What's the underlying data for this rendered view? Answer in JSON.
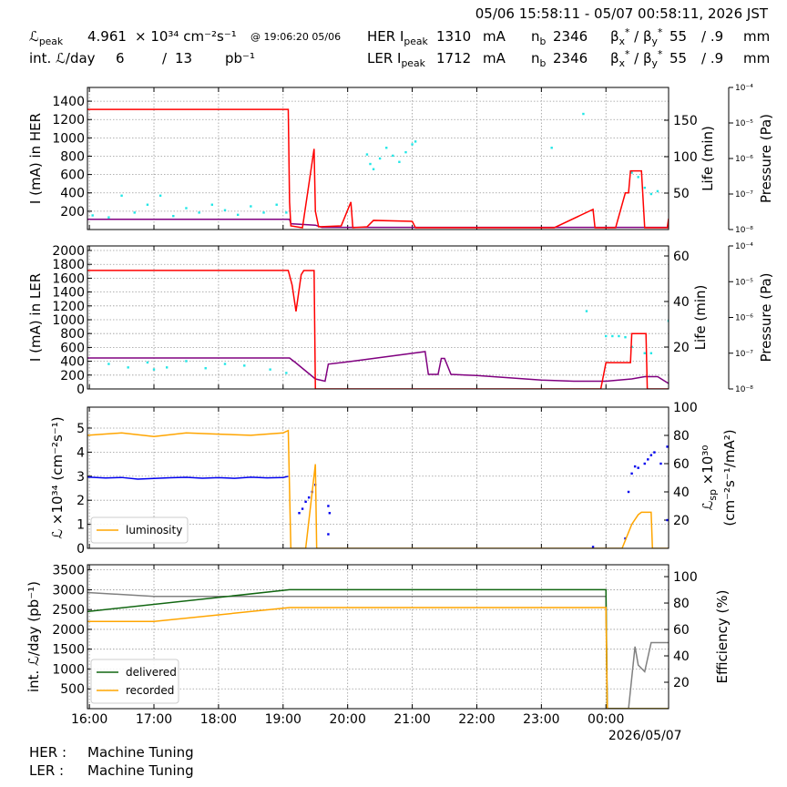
{
  "header": {
    "range": "05/06 15:58:11 - 05/07 00:58:11, 2026 JST",
    "row1": [
      [
        {
          "text": "ℒ"
        },
        {
          "text": "peak",
          "shift": "sub"
        }
      ],
      "4.961",
      "× 10³⁴ cm⁻²s⁻¹",
      "@ 19:06:20 05/06",
      [
        {
          "text": "HER I"
        },
        {
          "text": "peak",
          "shift": "sub"
        }
      ],
      "1310",
      "mA",
      [
        {
          "text": "n"
        },
        {
          "text": "b",
          "shift": "sub"
        }
      ],
      "2346",
      [
        {
          "text": "β"
        },
        {
          "text": "x",
          "shift": "sub"
        },
        {
          "text": "*",
          "shift": "sup"
        },
        {
          "text": " / β"
        },
        {
          "text": "y",
          "shift": "sub"
        },
        {
          "text": "*",
          "shift": "sup"
        }
      ],
      "55",
      "/ .9",
      "mm"
    ],
    "row2": [
      "int. ℒ/day",
      "6",
      "/",
      "13",
      "pb⁻¹",
      [
        {
          "text": "LER I"
        },
        {
          "text": "peak",
          "shift": "sub"
        }
      ],
      "1712",
      "mA",
      [
        {
          "text": "n"
        },
        {
          "text": "b",
          "shift": "sub"
        }
      ],
      "2346",
      [
        {
          "text": "β"
        },
        {
          "text": "x",
          "shift": "sub"
        },
        {
          "text": "*",
          "shift": "sup"
        },
        {
          "text": " / β"
        },
        {
          "text": "y",
          "shift": "sub"
        },
        {
          "text": "*",
          "shift": "sup"
        }
      ],
      "55",
      "/ .9",
      "mm"
    ]
  },
  "chart_data": [
    {
      "type": "line",
      "ylabel": [
        [
          {
            "text": "I (mA) in HER"
          }
        ]
      ],
      "y2label": [
        [
          {
            "text": "Life (min)"
          }
        ]
      ],
      "y3label": [
        [
          {
            "text": "Pressure (Pa)"
          }
        ]
      ],
      "xlim": [
        15.97,
        24.97
      ],
      "xticks": [
        16,
        17,
        18,
        19,
        20,
        21,
        22,
        23,
        24
      ],
      "ylim": [
        0,
        1550
      ],
      "yticks": [
        200,
        400,
        600,
        800,
        1000,
        1200,
        1400
      ],
      "y2lim": [
        0,
        195
      ],
      "y2ticks": [
        50,
        100,
        150
      ],
      "y3lim": [
        1e-08,
        0.0001
      ],
      "y3log": true,
      "y3ticks": [
        {
          "value": 1e-08,
          "label": "10⁻⁸"
        },
        {
          "value": 1e-07,
          "label": "10⁻⁷"
        },
        {
          "value": 1e-06,
          "label": "10⁻⁶"
        },
        {
          "value": 1e-05,
          "label": "10⁻⁵"
        },
        {
          "value": 0.0001,
          "label": "10⁻⁴"
        }
      ],
      "grid": true,
      "series": [
        {
          "type": "scatter",
          "color": "#22e6e6",
          "axis": "y3",
          "x": [
            16.05,
            16.3,
            16.5,
            16.7,
            16.9,
            17.1,
            17.3,
            17.5,
            17.7,
            17.9,
            18.1,
            18.3,
            18.5,
            18.7,
            18.9,
            19.05,
            20.3,
            20.35,
            20.4,
            20.5,
            20.6,
            20.7,
            20.8,
            20.9,
            21.0,
            21.05,
            23.16,
            23.65,
            24.4,
            24.5,
            24.6,
            24.7,
            24.8
          ],
          "values": [
            2.5e-08,
            2.2e-08,
            9e-08,
            3e-08,
            5e-08,
            9e-08,
            2.4e-08,
            4e-08,
            3e-08,
            5e-08,
            3.5e-08,
            2.6e-08,
            4.5e-08,
            3e-08,
            5e-08,
            3e-08,
            1.3e-06,
            7e-07,
            5e-07,
            1e-06,
            2e-06,
            1.2e-06,
            8e-07,
            1.5e-06,
            2.5e-06,
            3e-06,
            2e-06,
            1.8e-05,
            4e-07,
            3e-07,
            1.5e-07,
            1e-07,
            1.2e-07
          ]
        },
        {
          "type": "line",
          "color": "#800080",
          "axis": "y2",
          "x": [
            15.97,
            19.1,
            19.12,
            19.5,
            19.6,
            24.97
          ],
          "values": [
            14,
            14,
            8,
            6,
            3,
            3
          ]
        },
        {
          "type": "line",
          "color": "#ff0000",
          "axis": "y",
          "x": [
            15.97,
            19.08,
            19.1,
            19.12,
            19.3,
            19.48,
            19.5,
            19.55,
            19.9,
            20.05,
            20.08,
            20.3,
            20.4,
            21.0,
            21.05,
            22.5,
            23.2,
            23.8,
            23.83,
            24.0,
            24.15,
            24.3,
            24.35,
            24.38,
            24.55,
            24.6,
            24.75,
            24.95,
            24.97
          ],
          "values": [
            1310,
            1310,
            300,
            40,
            20,
            880,
            200,
            30,
            40,
            300,
            20,
            30,
            100,
            90,
            20,
            20,
            20,
            220,
            20,
            20,
            20,
            400,
            400,
            640,
            640,
            20,
            20,
            20,
            120
          ]
        }
      ]
    },
    {
      "type": "line",
      "ylabel": [
        [
          {
            "text": "I (mA) in LER"
          }
        ]
      ],
      "y2label": [
        [
          {
            "text": "Life (min)"
          }
        ]
      ],
      "y3label": [
        [
          {
            "text": "Pressure (Pa)"
          }
        ]
      ],
      "xlim": [
        15.97,
        24.97
      ],
      "xticks": [
        16,
        17,
        18,
        19,
        20,
        21,
        22,
        23,
        24
      ],
      "ylim": [
        0,
        2066
      ],
      "yticks": [
        0,
        200,
        400,
        600,
        800,
        1000,
        1200,
        1400,
        1600,
        1800,
        2000
      ],
      "y2lim": [
        1.6,
        64.4
      ],
      "y2ticks": [
        20,
        40,
        60
      ],
      "y3lim": [
        1e-08,
        0.0001
      ],
      "y3log": true,
      "y3ticks": [
        {
          "value": 1e-08,
          "label": "10⁻⁸"
        },
        {
          "value": 1e-07,
          "label": "10⁻⁷"
        },
        {
          "value": 1e-06,
          "label": "10⁻⁶"
        },
        {
          "value": 1e-05,
          "label": "10⁻⁵"
        },
        {
          "value": 0.0001,
          "label": "10⁻⁴"
        }
      ],
      "grid": true,
      "series": [
        {
          "type": "scatter",
          "color": "#22e6e6",
          "axis": "y3",
          "x": [
            16.3,
            16.6,
            16.9,
            17.0,
            17.2,
            17.5,
            17.8,
            18.1,
            18.4,
            18.8,
            19.05,
            23.7,
            24.0,
            24.1,
            24.2,
            24.3,
            24.4,
            24.6,
            24.7,
            24.97
          ],
          "values": [
            5e-08,
            4e-08,
            5.5e-08,
            3.5e-08,
            4e-08,
            6e-08,
            3.8e-08,
            5e-08,
            4.5e-08,
            3.5e-08,
            2.8e-08,
            1.5e-06,
            3e-07,
            3e-07,
            3e-07,
            2.8e-07,
            1.5e-07,
            1e-07,
            1e-07,
            8e-07
          ]
        },
        {
          "type": "line",
          "color": "#800080",
          "axis": "y2",
          "x": [
            15.97,
            19.1,
            19.2,
            19.5,
            19.65,
            19.7,
            20.0,
            21.2,
            21.25,
            21.4,
            21.45,
            21.5,
            21.6,
            22.0,
            22.5,
            23.0,
            23.5,
            24.0,
            24.4,
            24.6,
            24.8,
            24.97
          ],
          "values": [
            15.2,
            15.2,
            13,
            6,
            5,
            12.5,
            13.5,
            18,
            8,
            8,
            15,
            15,
            8,
            7.5,
            6.5,
            5.5,
            5,
            5,
            6,
            7,
            7,
            4
          ]
        },
        {
          "type": "line",
          "color": "#ff0000",
          "axis": "y",
          "x": [
            15.97,
            19.08,
            19.14,
            19.2,
            19.28,
            19.32,
            19.48,
            19.5,
            23.92,
            24.0,
            24.38,
            24.4,
            24.62,
            24.64,
            24.97
          ],
          "values": [
            1712,
            1712,
            1500,
            1120,
            1650,
            1710,
            1710,
            0,
            0,
            380,
            380,
            800,
            800,
            0,
            0
          ]
        }
      ]
    },
    {
      "type": "line",
      "ylabel": [
        [
          {
            "text": "ℒ ×10³⁴ (cm⁻²s⁻¹)"
          }
        ]
      ],
      "y2label": [
        [
          {
            "text": "ℒ"
          },
          {
            "text": "sp",
            "shift": "sub"
          },
          {
            "text": " ×10³⁰"
          }
        ],
        [
          {
            "text": "(cm⁻²s⁻¹/mA²)"
          }
        ]
      ],
      "xlim": [
        15.97,
        24.97
      ],
      "xticks": [
        16,
        17,
        18,
        19,
        20,
        21,
        22,
        23,
        24
      ],
      "ylim": [
        0,
        5.87
      ],
      "yticks": [
        0,
        1,
        2,
        3,
        4,
        5
      ],
      "y2lim": [
        0,
        100
      ],
      "y2ticks": [
        20,
        40,
        60,
        80,
        100
      ],
      "grid": true,
      "legend": "lower left",
      "series": [
        {
          "type": "line",
          "color": "#0000ee",
          "axis": "y2",
          "x": [
            15.97,
            16.25,
            16.5,
            16.75,
            17.0,
            17.25,
            17.5,
            17.75,
            18.0,
            18.25,
            18.5,
            18.75,
            19.0,
            19.08
          ],
          "values": [
            50.5,
            49.8,
            50.2,
            49,
            49.5,
            50,
            50.3,
            49.7,
            50.1,
            49.6,
            50.4,
            49.9,
            50.2,
            51
          ]
        },
        {
          "type": "scatter",
          "color": "#0000ee",
          "axis": "y2",
          "x": [
            19.25,
            19.3,
            19.35,
            19.4,
            19.45,
            19.5,
            19.7,
            19.72,
            19.7,
            23.8,
            24.3,
            24.35,
            24.4,
            24.45,
            24.5,
            24.6,
            24.65,
            24.7,
            24.75,
            24.85,
            24.95,
            24.95
          ],
          "values": [
            25,
            28,
            33,
            36,
            40,
            45,
            30,
            25,
            10,
            1,
            7,
            40,
            53,
            58,
            57,
            60,
            63,
            66,
            68,
            60,
            72,
            20
          ]
        },
        {
          "type": "line",
          "name": "luminosity",
          "color": "#ffa500",
          "axis": "y",
          "x": [
            15.97,
            16.5,
            17.0,
            17.5,
            18.0,
            18.5,
            19.0,
            19.08,
            19.12,
            19.35,
            19.5,
            19.52,
            24.25,
            24.4,
            24.5,
            24.55,
            24.7,
            24.72,
            24.97
          ],
          "values": [
            4.7,
            4.8,
            4.65,
            4.8,
            4.75,
            4.7,
            4.8,
            4.9,
            0,
            0,
            3.5,
            0,
            0,
            1.0,
            1.4,
            1.5,
            1.5,
            0,
            0
          ]
        }
      ]
    },
    {
      "type": "line",
      "ylabel": [
        [
          {
            "text": "int. ℒ/day (pb⁻¹)"
          }
        ]
      ],
      "y2label": [
        [
          {
            "text": "Efficiency (%)"
          }
        ]
      ],
      "xlim": [
        15.97,
        24.97
      ],
      "xticks": [
        {
          "value": 16,
          "label": "16:00"
        },
        {
          "value": 17,
          "label": "17:00"
        },
        {
          "value": 18,
          "label": "18:00"
        },
        {
          "value": 19,
          "label": "19:00"
        },
        {
          "value": 20,
          "label": "20:00"
        },
        {
          "value": 21,
          "label": "21:00"
        },
        {
          "value": 22,
          "label": "22:00"
        },
        {
          "value": 23,
          "label": "23:00"
        },
        {
          "value": 24,
          "label": "00:00"
        }
      ],
      "x_date": "2026/05/07",
      "ylim": [
        0,
        3630
      ],
      "yticks": [
        500,
        1000,
        1500,
        2000,
        2500,
        3000,
        3500
      ],
      "y2lim": [
        0,
        109
      ],
      "y2ticks": [
        20,
        40,
        60,
        80,
        100
      ],
      "grid": true,
      "legend": "lower left",
      "series": [
        {
          "type": "line",
          "color": "#808080",
          "axis": "y2",
          "x": [
            15.97,
            17.0,
            19.0,
            24.0,
            24.02,
            24.35,
            24.45,
            24.5,
            24.6,
            24.7,
            24.97
          ],
          "values": [
            88,
            85,
            85,
            85,
            0,
            0,
            47,
            33,
            28,
            50,
            50
          ]
        },
        {
          "type": "line",
          "name": "delivered",
          "color": "#116611",
          "axis": "y",
          "x": [
            15.97,
            19.1,
            19.5,
            24.0,
            24.02,
            24.97
          ],
          "values": [
            2450,
            3000,
            3000,
            3000,
            0,
            0
          ]
        },
        {
          "type": "line",
          "name": "recorded",
          "color": "#ffa500",
          "axis": "y",
          "x": [
            15.97,
            17.0,
            19.1,
            24.0,
            24.02,
            24.97
          ],
          "values": [
            2200,
            2200,
            2550,
            2550,
            0,
            0
          ]
        }
      ]
    }
  ],
  "footer": {
    "rows": [
      [
        "HER :",
        "Machine Tuning"
      ],
      [
        "LER :",
        "Machine Tuning"
      ]
    ]
  }
}
